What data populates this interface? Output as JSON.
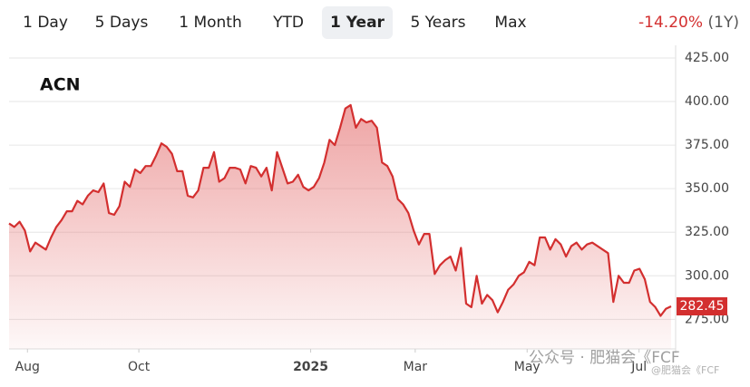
{
  "tabs": [
    "1 Day",
    "5 Days",
    "1 Month",
    "YTD",
    "1 Year",
    "5 Years",
    "Max"
  ],
  "active_tab": "1 Year",
  "change": "-14.20%",
  "change_period": "(1Y)",
  "watermark": [
    "公众号 · 肥猫会《FCF",
    "@肥猫会《FCF"
  ],
  "chart_data": {
    "type": "area",
    "title": "ACN",
    "color": "#d32f2f",
    "grid": true,
    "xlim": [
      0,
      126
    ],
    "xticks": [
      {
        "value": 3.5,
        "label": "Aug"
      },
      {
        "value": 24.7,
        "label": "Oct"
      },
      {
        "value": 57.4,
        "label": "2025"
      },
      {
        "value": 77.3,
        "label": "Mar"
      },
      {
        "value": 98.6,
        "label": "May"
      },
      {
        "value": 119.9,
        "label": "Jul"
      }
    ],
    "ylim": [
      258,
      425
    ],
    "yticks": [
      {
        "value": 275,
        "label": "275.00"
      },
      {
        "value": 300,
        "label": "300.00"
      },
      {
        "value": 325,
        "label": "325.00"
      },
      {
        "value": 350,
        "label": "350.00"
      },
      {
        "value": 375,
        "label": "375.00"
      },
      {
        "value": 400,
        "label": "400.00"
      },
      {
        "value": 425,
        "label": "425.00"
      }
    ],
    "values": [
      330,
      328,
      331,
      326,
      314,
      319,
      317,
      315,
      322,
      328,
      332,
      337,
      337,
      343,
      341,
      346,
      349,
      348,
      353,
      336,
      335,
      340,
      354,
      351,
      361,
      359,
      363,
      363,
      369,
      376,
      374,
      370,
      360,
      360,
      346,
      345,
      349,
      362,
      362,
      371,
      354,
      356,
      362,
      362,
      361,
      353,
      363,
      362,
      357,
      362,
      349,
      371,
      362,
      353,
      354,
      358,
      351,
      349,
      351,
      356,
      365,
      378,
      375,
      385,
      396,
      398,
      385,
      390,
      388,
      389,
      385,
      365,
      363,
      357,
      344,
      341,
      336,
      326,
      318,
      324,
      324,
      301,
      306,
      309,
      311,
      303,
      316,
      284,
      282,
      300,
      284,
      289,
      286,
      279,
      285,
      292,
      295,
      300,
      302,
      308,
      306,
      322,
      322,
      315,
      321,
      318,
      311,
      317,
      319,
      315,
      318,
      319,
      317,
      315,
      313,
      285,
      300,
      296,
      296,
      303,
      304,
      298,
      285,
      282,
      277,
      281,
      282.45
    ]
  }
}
